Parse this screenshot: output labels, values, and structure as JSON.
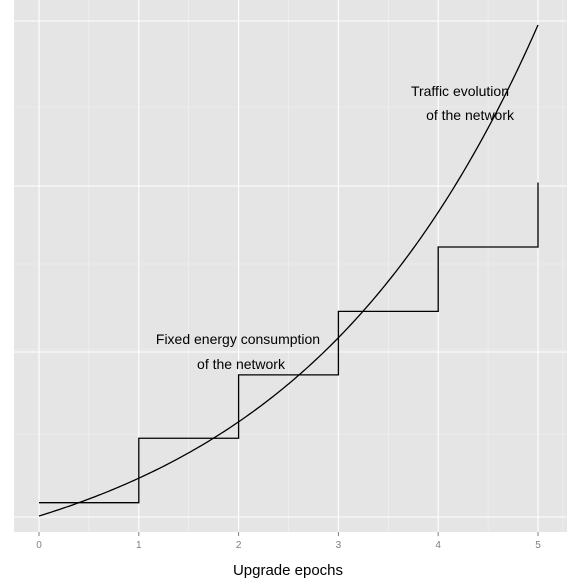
{
  "chart_data": {
    "type": "line",
    "xlabel": "Upgrade epochs",
    "ylabel": "",
    "xlim": [
      -0.25,
      5.25
    ],
    "ylim": [
      0,
      1
    ],
    "x_ticks": [
      0,
      1,
      2,
      3,
      4,
      5
    ],
    "x_tick_labels": [
      "0",
      "1",
      "2",
      "3",
      "4",
      "5"
    ],
    "y_ticks_shown": false,
    "grid": true,
    "background": "#e5e5e5",
    "series": [
      {
        "kind": "exponential-curve",
        "x": [
          0,
          0.5,
          1,
          1.5,
          2,
          2.5,
          3,
          3.5,
          4,
          4.5,
          5
        ],
        "y": [
          0,
          0.0055,
          0.0146,
          0.0297,
          0.0544,
          0.0953,
          0.1627,
          0.2736,
          0.4568,
          0.7589,
          1.0
        ]
      },
      {
        "kind": "step",
        "x": [
          0,
          1,
          2,
          3,
          4,
          5
        ],
        "y": [
          0.0271,
          0.1583,
          0.2875,
          0.4167,
          0.5479,
          0.6792
        ]
      }
    ],
    "annotations": [
      {
        "lines": [
          "Traffic evolution",
          "of the network"
        ],
        "x": 4.75,
        "y": 0.88
      },
      {
        "lines": [
          "Fixed energy consumption",
          "of the network"
        ],
        "x": 2.0,
        "y": 0.36
      }
    ]
  }
}
